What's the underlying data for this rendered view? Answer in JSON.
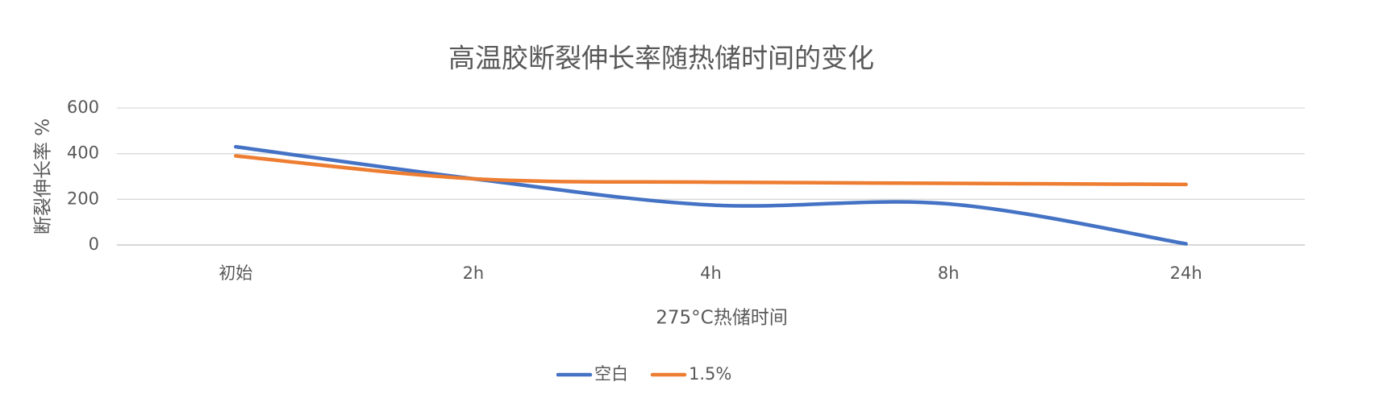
{
  "chart_data": {
    "type": "line",
    "title": "高温胶断裂伸长率随热储时间的变化",
    "x_label": "275°C热储时间",
    "y_label": "断裂伸长率 %",
    "categories": [
      "初始",
      "2h",
      "4h",
      "8h",
      "24h"
    ],
    "series": [
      {
        "name": "空白",
        "color": "#4472c4",
        "values": [
          430,
          290,
          175,
          180,
          5
        ]
      },
      {
        "name": "1.5%",
        "color": "#ed7d31",
        "values": [
          390,
          290,
          275,
          270,
          265
        ]
      }
    ],
    "ylim": [
      0,
      600
    ],
    "yticks": [
      0,
      200,
      400,
      600
    ],
    "grid": true,
    "smooth": true,
    "legend": "bottom"
  }
}
